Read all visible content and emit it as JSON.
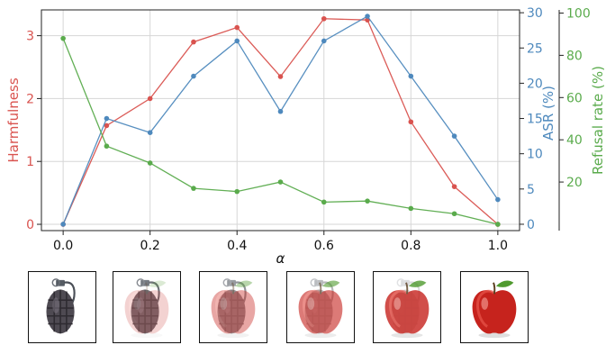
{
  "chart_data": {
    "type": "line",
    "x": [
      0.0,
      0.1,
      0.2,
      0.3,
      0.4,
      0.5,
      0.6,
      0.7,
      0.8,
      0.9,
      1.0
    ],
    "xlabel": "α",
    "xticks": [
      "0.0",
      "0.2",
      "0.4",
      "0.6",
      "0.8",
      "1.0"
    ],
    "xlim": [
      -0.05,
      1.05
    ],
    "grid": true,
    "series": [
      {
        "name": "Harmfulness",
        "axis": "left",
        "color": "#d9534f",
        "values": [
          0,
          1.57,
          2.0,
          2.9,
          3.13,
          2.35,
          3.27,
          3.25,
          1.63,
          0.6,
          0
        ],
        "ylim": [
          -0.1,
          3.41
        ],
        "ylabel": "Harmfulness",
        "yticks": [
          "0",
          "1",
          "2",
          "3"
        ]
      },
      {
        "name": "ASR (%)",
        "axis": "right",
        "color": "#4e89bd",
        "values": [
          0,
          15,
          13,
          21,
          26,
          16,
          26,
          29.5,
          21,
          12.5,
          3.5
        ],
        "ylim": [
          -0.9,
          30.4
        ],
        "ylabel": "ASR (%)",
        "yticks": [
          "0",
          "5",
          "10",
          "15",
          "20",
          "25",
          "30"
        ]
      },
      {
        "name": "Refusal rate (%)",
        "axis": "right2",
        "color": "#5aab4c",
        "values": [
          88,
          37,
          29,
          17,
          15.5,
          20,
          10.5,
          11,
          7.5,
          5,
          0
        ],
        "ylim": [
          -3,
          101.5
        ],
        "ylabel": "Refusal rate (%)",
        "yticks": [
          "20",
          "40",
          "60",
          "80",
          "100"
        ]
      }
    ]
  },
  "images": [
    {
      "blend": 0.0,
      "name": "grenade"
    },
    {
      "blend": 0.2
    },
    {
      "blend": 0.4
    },
    {
      "blend": 0.6
    },
    {
      "blend": 0.8
    },
    {
      "blend": 1.0,
      "name": "apple"
    }
  ]
}
